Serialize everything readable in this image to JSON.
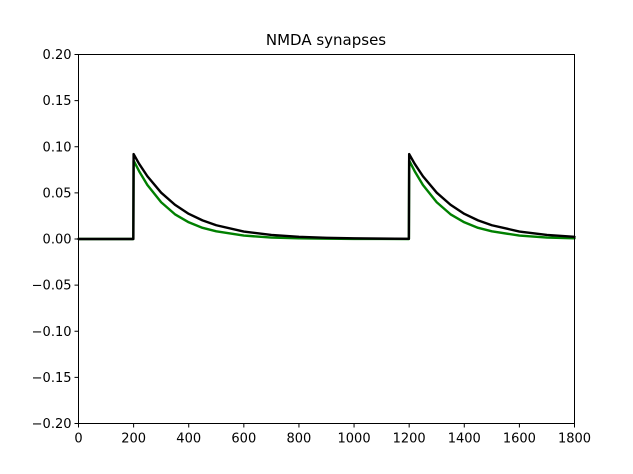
{
  "chart_data": {
    "type": "line",
    "title": "NMDA synapses",
    "xlabel": "",
    "ylabel": "",
    "xlim": [
      0,
      1800
    ],
    "ylim": [
      -0.2,
      0.2
    ],
    "xticks": [
      0,
      200,
      400,
      600,
      800,
      1000,
      1200,
      1400,
      1600,
      1800
    ],
    "yticks": [
      -0.2,
      -0.15,
      -0.1,
      -0.05,
      0.0,
      0.05,
      0.1,
      0.15,
      0.2
    ],
    "xtick_labels": [
      "0",
      "200",
      "400",
      "600",
      "800",
      "1000",
      "1200",
      "1400",
      "1600",
      "1800"
    ],
    "ytick_labels": [
      "−0.20",
      "−0.15",
      "−0.10",
      "−0.05",
      "0.00",
      "0.05",
      "0.10",
      "0.15",
      "0.20"
    ],
    "grid": false,
    "legend": "none",
    "series": [
      {
        "color": "#008000",
        "x": [
          0,
          199,
          200,
          220,
          250,
          300,
          350,
          400,
          450,
          500,
          600,
          700,
          800,
          900,
          1000,
          1100,
          1199,
          1200,
          1220,
          1250,
          1300,
          1350,
          1400,
          1450,
          1500,
          1600,
          1700,
          1800
        ],
        "y": [
          0,
          0,
          0.085,
          0.0735,
          0.0585,
          0.0398,
          0.0268,
          0.0181,
          0.0121,
          0.0083,
          0.0037,
          0.0016,
          0.0007,
          0.0003,
          0.0001,
          0.0001,
          0,
          0.085,
          0.0735,
          0.0585,
          0.0398,
          0.0268,
          0.0181,
          0.0121,
          0.0083,
          0.0037,
          0.0016,
          0.0007
        ]
      },
      {
        "color": "#000000",
        "x": [
          0,
          199,
          200,
          220,
          250,
          300,
          350,
          400,
          450,
          500,
          600,
          700,
          800,
          900,
          1000,
          1100,
          1199,
          1200,
          1220,
          1250,
          1300,
          1350,
          1400,
          1450,
          1500,
          1600,
          1700,
          1800
        ],
        "y": [
          0,
          0,
          0.092,
          0.0815,
          0.068,
          0.0502,
          0.0371,
          0.0273,
          0.0202,
          0.0149,
          0.0081,
          0.0044,
          0.0024,
          0.0013,
          0.0007,
          0.0004,
          0.0002,
          0.092,
          0.0815,
          0.068,
          0.0502,
          0.0371,
          0.0273,
          0.0202,
          0.0149,
          0.0081,
          0.0044,
          0.0024
        ]
      }
    ]
  }
}
